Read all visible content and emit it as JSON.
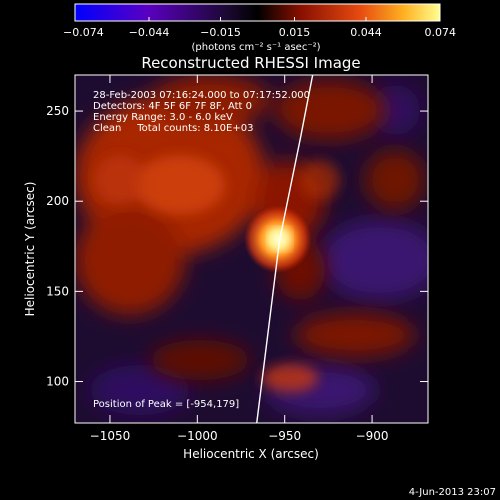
{
  "chart_data": {
    "type": "heatmap",
    "title": "Reconstructed RHESSI Image",
    "xlabel": "Heliocentric X (arcsec)",
    "ylabel": "Heliocentric Y (arcsec)",
    "xlim": [
      -1070,
      -868
    ],
    "ylim": [
      77,
      270
    ],
    "x_ticks": [
      -1050,
      -1000,
      -950,
      -900
    ],
    "y_ticks": [
      100,
      150,
      200,
      250
    ],
    "x_tick_labels": [
      "−1050",
      "−1000",
      "−950",
      "−900"
    ],
    "y_tick_labels": [
      "100",
      "150",
      "200",
      "250"
    ],
    "colorbar": {
      "range": [
        -0.074,
        0.074
      ],
      "ticks": [
        -0.074,
        -0.044,
        -0.015,
        0.015,
        0.044,
        0.074
      ],
      "tick_labels": [
        "−0.074",
        "−0.044",
        "−0.015",
        "0.015",
        "0.044",
        "0.074"
      ],
      "unit_label": "(photons cm⁻² s⁻¹ asec⁻²)",
      "colors": [
        "#0000ff",
        "#5a00c0",
        "#1a0830",
        "#000000",
        "#8a1000",
        "#e64a10",
        "#ffb020",
        "#ffff90"
      ]
    },
    "annotations": {
      "time": "28-Feb-2003 07:16:24.000 to 07:17:52.000",
      "detectors": "Detectors: 4F 5F 6F 7F 8F, Att 0",
      "energy": "Energy Range: 3.0 - 6.0 keV",
      "clean": "Clean     Total counts: 8.10E+03",
      "peak": "Position of Peak = [-954,179]"
    },
    "peak": {
      "x": -954,
      "y": 179
    },
    "limb": [
      [
        -966,
        77
      ],
      [
        -953,
        178
      ],
      [
        -941,
        235
      ],
      [
        -934,
        270
      ]
    ],
    "grid": false
  },
  "footer": {
    "date": "4-Jun-2013 23:07"
  }
}
